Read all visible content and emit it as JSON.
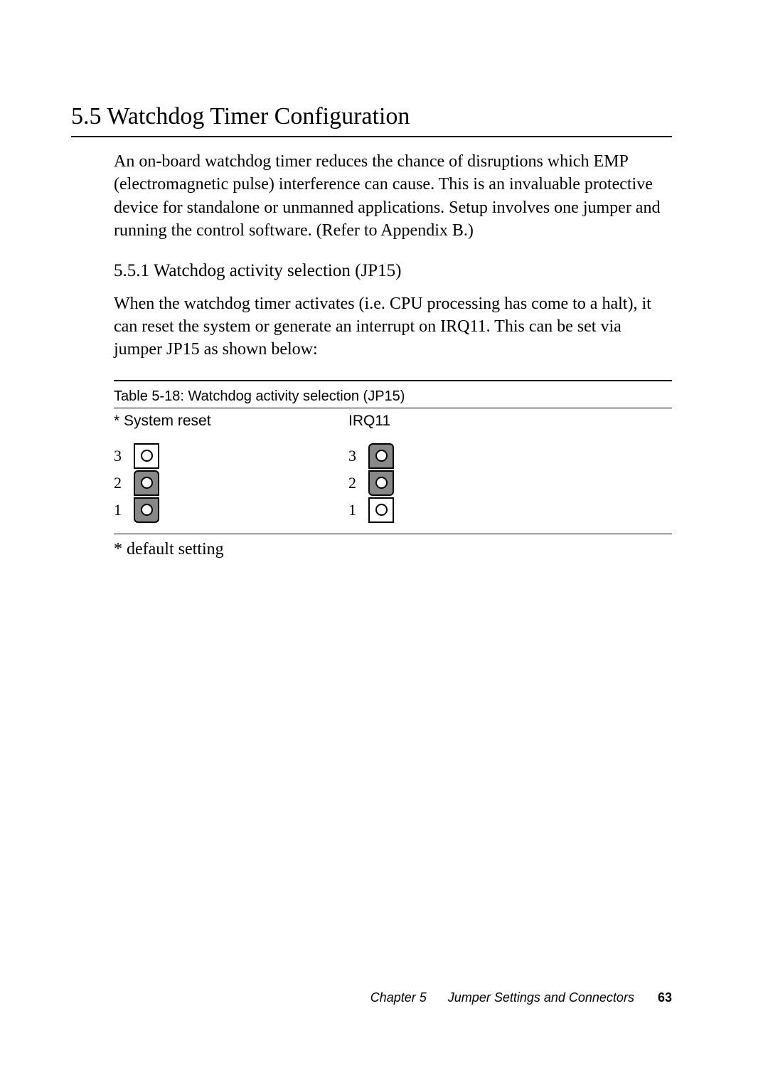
{
  "section": {
    "number": "5.5",
    "title": "Watchdog Timer Configuration",
    "intro": "An on-board watchdog timer reduces the chance of disruptions which EMP (electromagnetic pulse) interference can cause. This is an invaluable protective device for standalone or unmanned applications. Setup involves one jumper and running the control software. (Refer to Appendix B.)"
  },
  "subsection": {
    "number": "5.5.1",
    "title": "Watchdog activity selection (JP15)",
    "body": "When the watchdog timer activates (i.e. CPU processing has come to a halt), it can reset the system or generate an interrupt on IRQ11. This can be set via jumper JP15 as shown below:"
  },
  "table": {
    "title": "Table 5-18: Watchdog activity selection (JP15)",
    "columns": [
      {
        "header": "* System reset",
        "pins": [
          {
            "label": "3",
            "jumpered": false,
            "cap": "none"
          },
          {
            "label": "2",
            "jumpered": true,
            "cap": "top"
          },
          {
            "label": "1",
            "jumpered": true,
            "cap": "bot"
          }
        ]
      },
      {
        "header": "IRQ11",
        "pins": [
          {
            "label": "3",
            "jumpered": true,
            "cap": "top"
          },
          {
            "label": "2",
            "jumpered": true,
            "cap": "bot"
          },
          {
            "label": "1",
            "jumpered": false,
            "cap": "none"
          }
        ]
      }
    ],
    "footnote": "* default setting"
  },
  "footer": {
    "chapter": "Chapter 5",
    "title": "Jumper Settings and Connectors",
    "page": "63"
  },
  "colors": {
    "background": "#ffffff",
    "text": "#000000",
    "jumper_fill": "#888888"
  }
}
